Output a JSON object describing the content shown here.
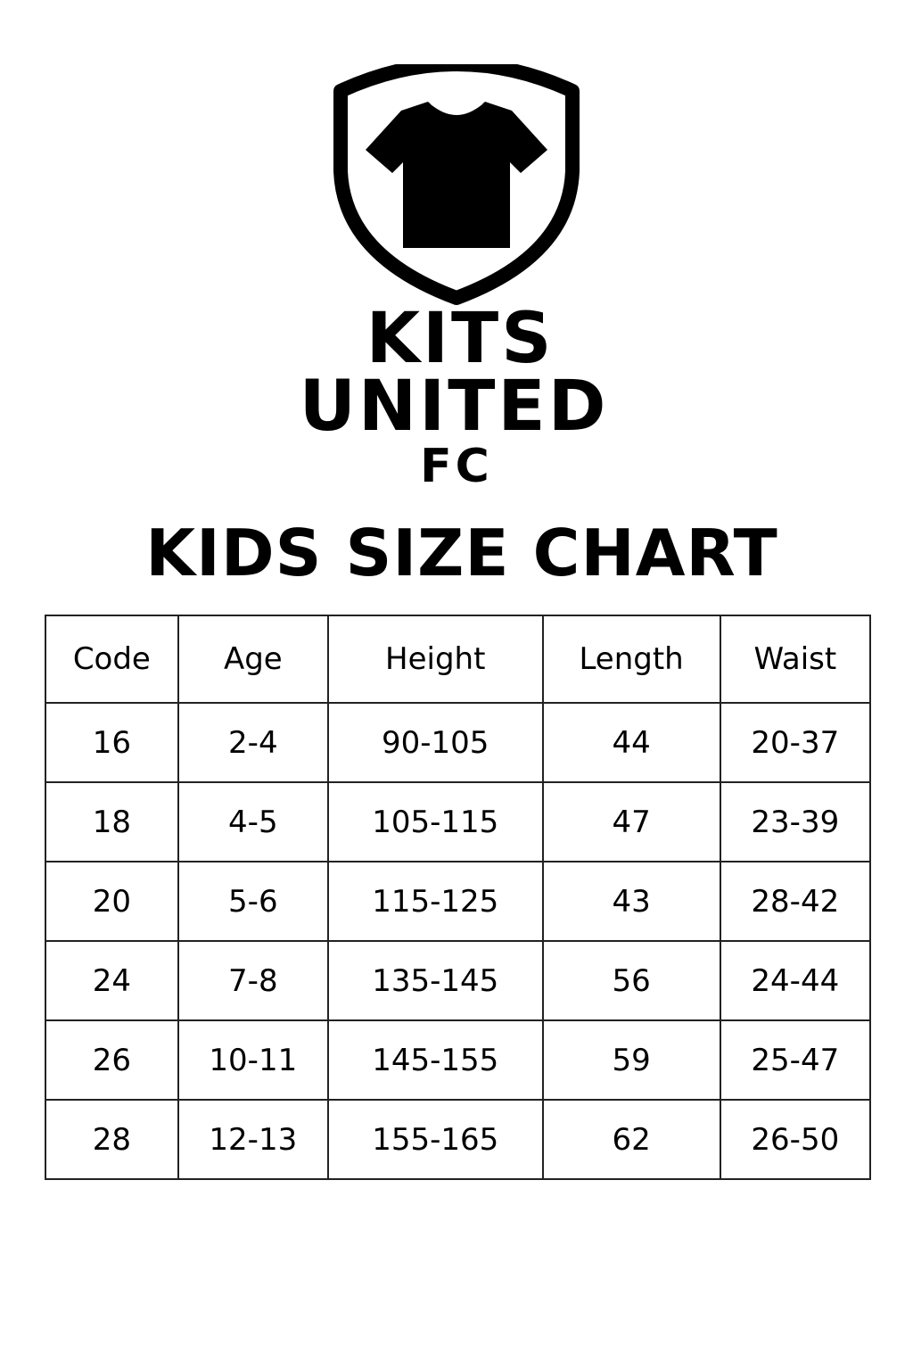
{
  "colors": {
    "ink": "#000000",
    "background": "#ffffff"
  },
  "logo": {
    "icon": "shield-tshirt-icon",
    "line1": "KITS",
    "line2": "UNITED",
    "line3": "FC"
  },
  "title": "KIDS SIZE CHART",
  "table": {
    "headers": [
      "Code",
      "Age",
      "Height",
      "Length",
      "Waist"
    ],
    "rows": [
      [
        "16",
        "2-4",
        "90-105",
        "44",
        "20-37"
      ],
      [
        "18",
        "4-5",
        "105-115",
        "47",
        "23-39"
      ],
      [
        "20",
        "5-6",
        "115-125",
        "43",
        "28-42"
      ],
      [
        "24",
        "7-8",
        "135-145",
        "56",
        "24-44"
      ],
      [
        "26",
        "10-11",
        "145-155",
        "59",
        "25-47"
      ],
      [
        "28",
        "12-13",
        "155-165",
        "62",
        "26-50"
      ]
    ]
  }
}
